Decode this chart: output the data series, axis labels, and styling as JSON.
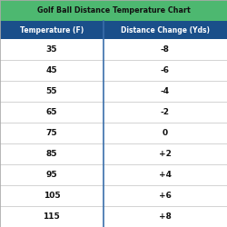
{
  "title": "Golf Ball Distance Temperature Chart",
  "col1_header": "Temperature (F)",
  "col2_header": "Distance Change (Yds)",
  "rows": [
    [
      "35",
      "-8"
    ],
    [
      "45",
      "-6"
    ],
    [
      "55",
      "-4"
    ],
    [
      "65",
      "-2"
    ],
    [
      "75",
      "0"
    ],
    [
      "85",
      "+2"
    ],
    [
      "95",
      "+4"
    ],
    [
      "105",
      "+6"
    ],
    [
      "115",
      "+8"
    ]
  ],
  "title_bg": "#4db870",
  "header_bg": "#1a4f8a",
  "header_text_color": "#FFFFFF",
  "title_text_color": "#111111",
  "row_bg": "#FFFFFF",
  "row_text_color": "#111111",
  "divider_color": "#CCCCCC",
  "col_divider_color": "#3a6eaa",
  "figsize": [
    2.5,
    2.5
  ],
  "dpi": 100
}
